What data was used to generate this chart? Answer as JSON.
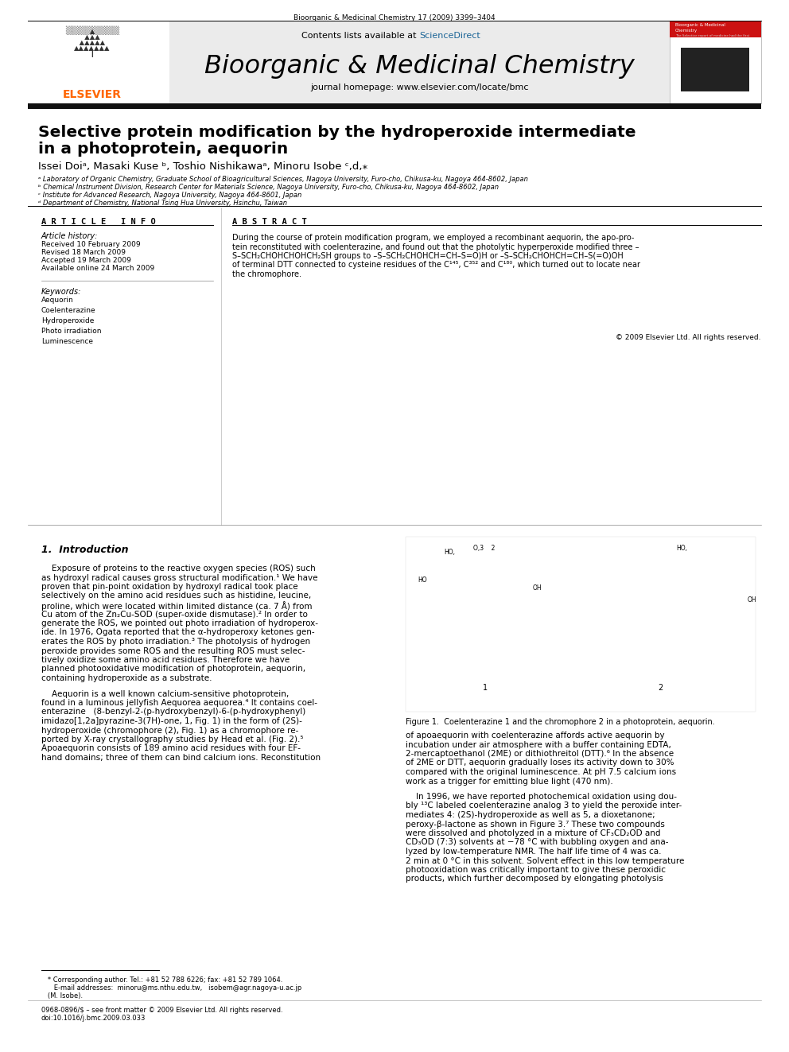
{
  "bg_color": "#ffffff",
  "header_journal_text": "Bioorganic & Medicinal Chemistry 17 (2009) 3399–3404",
  "journal_name": "Bioorganic & Medicinal Chemistry",
  "contents_text": "Contents lists available at ",
  "sciencedirect_text": "ScienceDirect",
  "homepage_text": "journal homepage: www.elsevier.com/locate/bmc",
  "elsevier_color": "#ff6600",
  "sciencedirect_color": "#1a6496",
  "header_bg": "#e8e8e8",
  "paper_title_line1": "Selective protein modification by the hydroperoxide intermediate",
  "paper_title_line2": "in a photoprotein, aequorin",
  "authors": "Issei Doiᵃ, Masaki Kuse ᵇ, Toshio Nishikawaᵃ, Minoru Isobe ᶜ,d,⁎",
  "affil_a": "ᵃ Laboratory of Organic Chemistry, Graduate School of Bioagricultural Sciences, Nagoya University, Furo-cho, Chikusa-ku, Nagoya 464-8602, Japan",
  "affil_b": "ᵇ Chemical Instrument Division, Research Center for Materials Science, Nagoya University, Furo-cho, Chikusa-ku, Nagoya 464-8602, Japan",
  "affil_c": "ᶜ Institute for Advanced Research, Nagoya University, Nagoya 464-8601, Japan",
  "affil_d": "ᵈ Department of Chemistry, National Tsing Hua University, Hsinchu, Taiwan",
  "article_info_header": "A R T I C L E   I N F O",
  "abstract_header": "A B S T R A C T",
  "article_history_label": "Article history:",
  "received": "Received 10 February 2009",
  "revised": "Revised 18 March 2009",
  "accepted": "Accepted 19 March 2009",
  "available": "Available online 24 March 2009",
  "keywords_label": "Keywords:",
  "keywords": [
    "Aequorin",
    "Coelenterazine",
    "Hydroperoxide",
    "Photo irradiation",
    "Luminescence"
  ],
  "abstract_lines": [
    "During the course of protein modification program, we employed a recombinant aequorin, the apo-pro-",
    "tein reconstituted with coelenterazine, and found out that the photolytic hyperperoxide modified three –",
    "S–SCH₂CHOHCHOHCH₂SH groups to –S–SCH₂CHOHCH=CH–S=O)H or –S–SCH₂CHOHCH=CH–S(=O)OH",
    "of terminal DTT connected to cysteine residues of the C¹⁴⁵, C³⁵² and C¹⁸⁰, which turned out to locate near",
    "the chromophore."
  ],
  "copyright_text": "© 2009 Elsevier Ltd. All rights reserved.",
  "intro_header": "1.  Introduction",
  "left_intro_lines": [
    "    Exposure of proteins to the reactive oxygen species (ROS) such",
    "as hydroxyl radical causes gross structural modification.¹ We have",
    "proven that pin-point oxidation by hydroxyl radical took place",
    "selectively on the amino acid residues such as histidine, leucine,",
    "proline, which were located within limited distance (ca. 7 Å) from",
    "Cu atom of the Zn₂Cu-SOD (super-oxide dismutase).² In order to",
    "generate the ROS, we pointed out photo irradiation of hydroperox-",
    "ide. In 1976, Ogata reported that the α-hydroperoxy ketones gen-",
    "erates the ROS by photo irradiation.³ The photolysis of hydrogen",
    "peroxide provides some ROS and the resulting ROS must selec-",
    "tively oxidize some amino acid residues. Therefore we have",
    "planned photooxidative modification of photoprotein, aequorin,",
    "containing hydroperoxide as a substrate."
  ],
  "left_intro_lines2": [
    "    Aequorin is a well known calcium-sensitive photoprotein,",
    "found in a luminous jellyfish Aequorea aequorea.⁴ It contains coel-",
    "enterazine   (8-benzyl-2-(p-hydroxybenzyl)-6-(p-hydroxyphenyl)",
    "imidazo[1,2a]pyrazine-3(7H)-one, 1, Fig. 1) in the form of (2S)-",
    "hydroperoxide (chromophore (2), Fig. 1) as a chromophore re-",
    "ported by X-ray crystallography studies by Head et al. (Fig. 2).⁵",
    "Apoaequorin consists of 189 amino acid residues with four EF-",
    "hand domains; three of them can bind calcium ions. Reconstitution"
  ],
  "right_col_lines1": [
    "of apoaequorin with coelenterazine affords active aequorin by",
    "incubation under air atmosphere with a buffer containing EDTA,",
    "2-mercaptoethanol (2ME) or dithiothreitol (DTT).⁶ In the absence",
    "of 2ME or DTT, aequorin gradually loses its activity down to 30%",
    "compared with the original luminescence. At pH 7.5 calcium ions",
    "work as a trigger for emitting blue light (470 nm)."
  ],
  "right_col_lines2": [
    "    In 1996, we have reported photochemical oxidation using dou-",
    "bly ¹³C labeled coelenterazine analog 3 to yield the peroxide inter-",
    "mediates 4: (2S)-hydroperoxide as well as 5, a dioxetanone;",
    "peroxy-β-lactone as shown in Figure 3.⁷ These two compounds",
    "were dissolved and photolyzed in a mixture of CF₃CD₂OD and",
    "CD₃OD (7:3) solvents at −78 °C with bubbling oxygen and ana-",
    "lyzed by low-temperature NMR. The half life time of 4 was ca.",
    "2 min at 0 °C in this solvent. Solvent effect in this low temperature",
    "photooxidation was critically important to give these peroxidic",
    "products, which further decomposed by elongating photolysis"
  ],
  "figure_caption": "Figure 1.  Coelenterazine 1 and the chromophore 2 in a photoprotein, aequorin.",
  "footer_line1": "   * Corresponding author. Tel.: +81 52 788 6226; fax: +81 52 789 1064.",
  "footer_line2": "      E-mail addresses:  minoru@ms.nthu.edu.tw,   isobem@agr.nagoya-u.ac.jp",
  "footer_line3": "   (M. Isobe).",
  "footer_issn": "0968-0896/$ – see front matter © 2009 Elsevier Ltd. All rights reserved.",
  "footer_doi": "doi:10.1016/j.bmc.2009.03.033",
  "link_color": "#1a6496"
}
